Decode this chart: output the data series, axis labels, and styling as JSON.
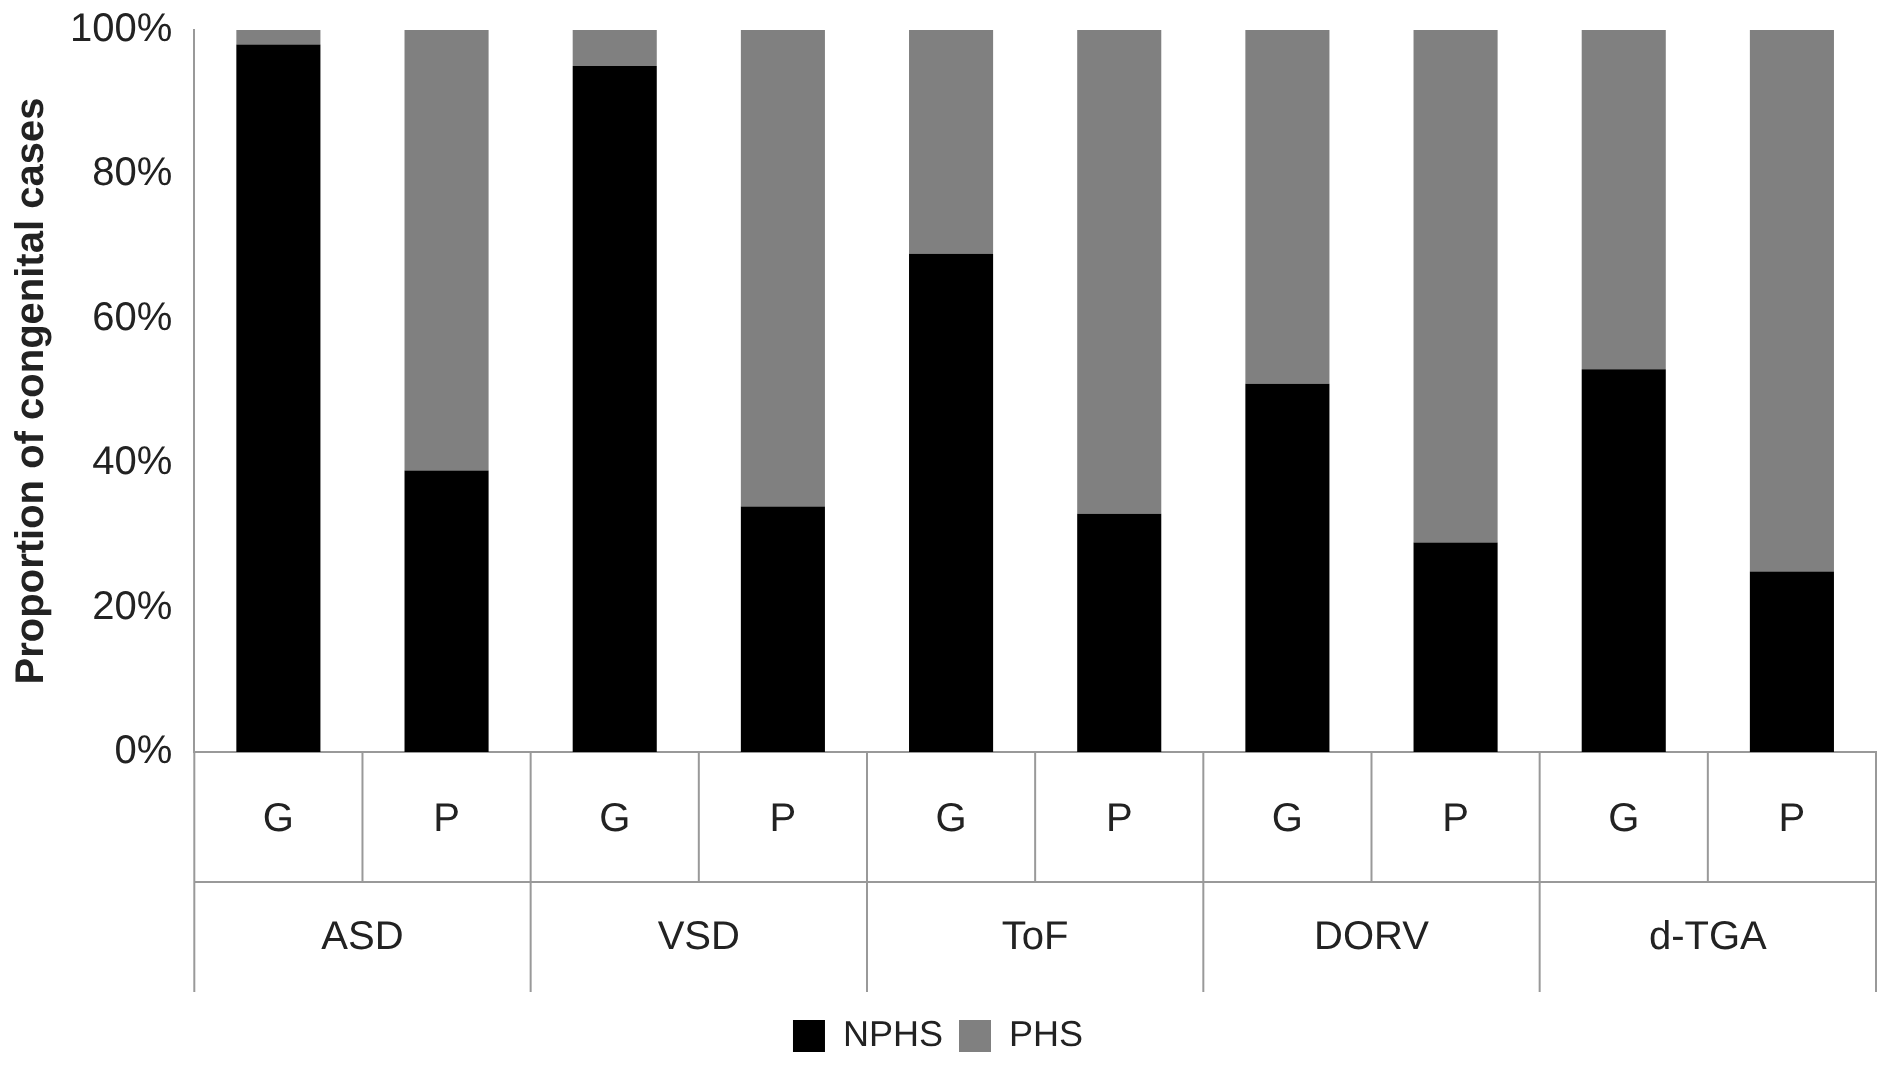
{
  "chart_data": {
    "type": "bar",
    "stacked": true,
    "ylabel": "Proportion of congenital cases",
    "categories": [
      "G",
      "P",
      "G",
      "P",
      "G",
      "P",
      "G",
      "P",
      "G",
      "P"
    ],
    "series": [
      {
        "name": "NPHS",
        "color": "#000000",
        "values": [
          98,
          39,
          95,
          34,
          69,
          33,
          51,
          29,
          53,
          25
        ]
      },
      {
        "name": "PHS",
        "color": "#808080",
        "values": [
          2,
          61,
          5,
          66,
          31,
          67,
          49,
          71,
          47,
          75
        ]
      }
    ],
    "ylim": [
      0,
      100
    ],
    "yticks": [
      {
        "value": 0,
        "label": "0%"
      },
      {
        "value": 20,
        "label": "20%"
      },
      {
        "value": 40,
        "label": "40%"
      },
      {
        "value": 60,
        "label": "60%"
      },
      {
        "value": 80,
        "label": "80%"
      },
      {
        "value": 100,
        "label": "100%"
      }
    ],
    "grid": false,
    "legend": "bottom",
    "annotations": [
      "ASD",
      "VSD",
      "ToF",
      "DORV",
      "d-TGA"
    ]
  }
}
